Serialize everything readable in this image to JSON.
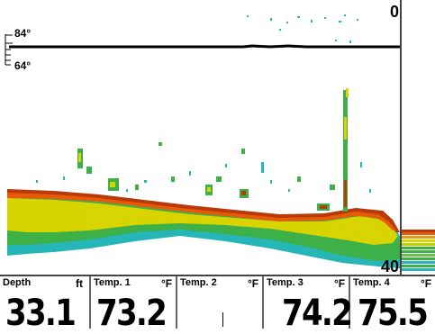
{
  "depth_scale": {
    "top": "0",
    "bottom": "40"
  },
  "temperature_scale": {
    "upper": "84°",
    "lower": "64°"
  },
  "readouts": [
    {
      "label": "Depth",
      "unit": "ft",
      "value": "33.1"
    },
    {
      "label": "Temp. 1",
      "unit": "°F",
      "value": "73.2"
    },
    {
      "label": "Temp. 2",
      "unit": "°F",
      "value": ""
    },
    {
      "label": "Temp. 3",
      "unit": "°F",
      "value": "74.2"
    },
    {
      "label": "Temp. 4",
      "unit": "°F",
      "value": "75.5"
    }
  ],
  "colors": {
    "bottom_return": "#b83a08",
    "strong_return": "#d8d400",
    "medium_return": "#3eb048",
    "weak_return": "#26b6b8",
    "temp_line": "#000000"
  }
}
